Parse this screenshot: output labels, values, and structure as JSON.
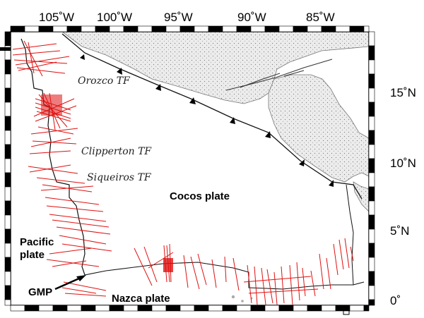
{
  "map": {
    "longitude_labels": [
      "105˚W",
      "100˚W",
      "95˚W",
      "90˚W",
      "85˚W"
    ],
    "latitude_labels": [
      "15˚N",
      "10˚N",
      "5˚N",
      "0˚"
    ],
    "features": {
      "orozco": "Orozco TF",
      "clipperton": "Clipperton TF",
      "siqueiros": "Siqueiros TF"
    },
    "plates": {
      "cocos": "Cocos plate",
      "pacific_line1": "Pacific",
      "pacific_line2": "plate",
      "nazca": "Nazca plate",
      "gmp": "GMP"
    },
    "colors": {
      "land": "#e6e6e6",
      "tracks": "#e01010",
      "boundaries": "#111111",
      "frame": "#000000"
    }
  }
}
